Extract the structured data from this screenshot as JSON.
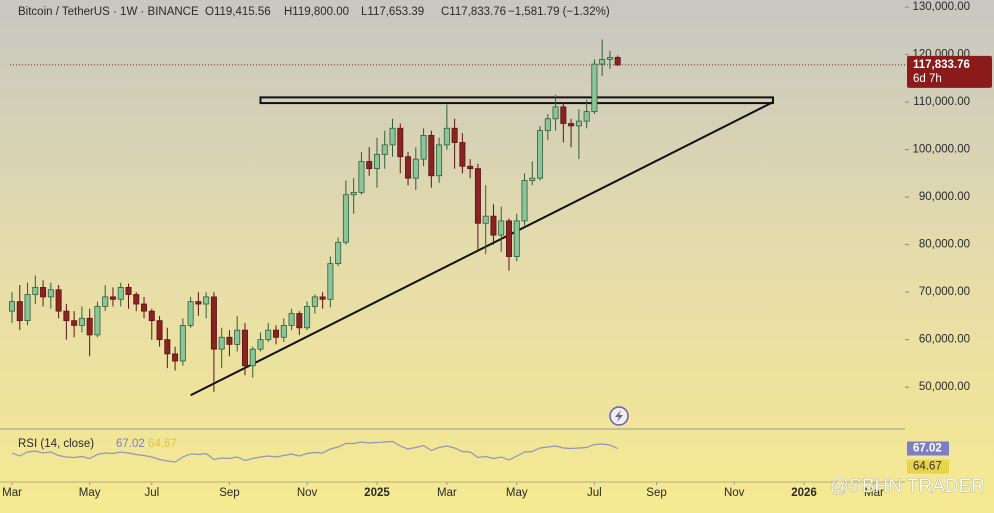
{
  "chart_data": {
    "type": "candlestick",
    "symbol": "Bitcoin / TetherUS · 1W · BINANCE",
    "ohlc_labels": [
      "O119,415.56",
      "H119,800.00",
      "L117,653.39",
      "C117,833.76"
    ],
    "change": "−1,581.79 (−1.32%)",
    "last_price_label": "117,833.76",
    "countdown": "6d 7h",
    "xlim": [
      -0.26,
      115.0
    ],
    "xticks": [
      {
        "value": 0,
        "label": "Mar"
      },
      {
        "value": 10,
        "label": "May"
      },
      {
        "value": 18,
        "label": "Jul"
      },
      {
        "value": 28,
        "label": "Sep"
      },
      {
        "value": 38,
        "label": "Nov"
      },
      {
        "value": 47,
        "label": "2025"
      },
      {
        "value": 56,
        "label": "Mar"
      },
      {
        "value": 65,
        "label": "May"
      },
      {
        "value": 75,
        "label": "Jul"
      },
      {
        "value": 83,
        "label": "Sep"
      },
      {
        "value": 93,
        "label": "Nov"
      },
      {
        "value": 102,
        "label": "2026"
      },
      {
        "value": 111,
        "label": "Mar"
      }
    ],
    "ylim": [
      41400,
      131500
    ],
    "yticks": [
      {
        "value": 50000,
        "label": "50,000.00"
      },
      {
        "value": 60000,
        "label": "60,000.00"
      },
      {
        "value": 70000,
        "label": "70,000.00"
      },
      {
        "value": 80000,
        "label": "80,000.00"
      },
      {
        "value": 90000,
        "label": "90,000.00"
      },
      {
        "value": 100000,
        "label": "100,000.00"
      },
      {
        "value": 110000,
        "label": "110,000.00"
      },
      {
        "value": 120000,
        "label": "120,000.00"
      },
      {
        "value": 130000,
        "label": "130,000.00"
      }
    ],
    "up_color": "#8cc49a",
    "down_color": "#8b2323",
    "open": [
      66000,
      68000,
      64000,
      69500,
      71000,
      69000,
      70500,
      66000,
      64000,
      63000,
      64500,
      61000,
      67000,
      69000,
      68500,
      71000,
      69500,
      67500,
      66000,
      64000,
      60000,
      57000,
      55500,
      63000,
      68000,
      67500,
      69000,
      58000,
      60500,
      59000,
      62000,
      54500,
      58000,
      60000,
      62000,
      60500,
      63000,
      65500,
      62500,
      67000,
      69000,
      68500,
      76000,
      80500,
      90500,
      91000,
      97500,
      96000,
      99000,
      101000,
      104500,
      98500,
      94000,
      98000,
      103000,
      94500,
      101000,
      104500,
      101500,
      96500,
      96000,
      84500,
      86000,
      82000,
      85000,
      77500,
      85000,
      93500,
      94000,
      104000,
      106500,
      109000,
      105500,
      105000,
      106000,
      108000,
      118000,
      119000,
      119415.56
    ],
    "high": [
      70000,
      71500,
      72000,
      73500,
      72500,
      72000,
      71500,
      67500,
      66000,
      67000,
      66500,
      68000,
      71500,
      71000,
      72000,
      71800,
      70000,
      69000,
      66500,
      65000,
      62500,
      58500,
      64500,
      69000,
      70000,
      70000,
      70000,
      62500,
      62000,
      65000,
      63500,
      58500,
      61500,
      63500,
      63000,
      64500,
      66500,
      66000,
      68000,
      69500,
      70000,
      77500,
      81500,
      93500,
      94000,
      99500,
      100500,
      102500,
      104000,
      106500,
      105500,
      99500,
      100500,
      104500,
      104000,
      102500,
      109500,
      106500,
      103500,
      98000,
      97000,
      92500,
      88500,
      88000,
      85500,
      86500,
      95000,
      97500,
      105000,
      107500,
      111500,
      110000,
      106500,
      108500,
      110500,
      119000,
      123200,
      120800,
      119800
    ],
    "low": [
      63500,
      62000,
      63000,
      67500,
      67000,
      66500,
      64500,
      60000,
      60500,
      61500,
      56500,
      60500,
      66000,
      67000,
      67000,
      66500,
      66000,
      64500,
      60000,
      58500,
      54000,
      53500,
      54500,
      62500,
      65000,
      64500,
      49000,
      54000,
      56500,
      57500,
      52500,
      52000,
      57500,
      59500,
      59000,
      59500,
      62000,
      61000,
      62000,
      65500,
      66500,
      66800,
      75500,
      80000,
      86500,
      90500,
      94500,
      92000,
      96000,
      98500,
      95000,
      92500,
      91500,
      96500,
      92000,
      93000,
      100000,
      96000,
      95000,
      94000,
      79000,
      78000,
      80000,
      78500,
      74500,
      76500,
      84000,
      92500,
      93500,
      102000,
      104000,
      101500,
      100500,
      98000,
      104500,
      107500,
      115500,
      117000,
      117653.39
    ],
    "close": [
      68000,
      64000,
      69500,
      71000,
      69000,
      70500,
      66000,
      64000,
      63000,
      64500,
      61000,
      67000,
      69000,
      68500,
      71000,
      69500,
      67500,
      66000,
      64000,
      60000,
      57000,
      55500,
      63000,
      68000,
      67500,
      69000,
      58000,
      60500,
      59000,
      62000,
      54500,
      58000,
      60000,
      62000,
      60500,
      63000,
      65500,
      62500,
      67000,
      69000,
      68500,
      76000,
      80500,
      90500,
      91000,
      97500,
      96000,
      99000,
      101000,
      104500,
      98500,
      94000,
      98000,
      103000,
      94500,
      101000,
      104500,
      101500,
      96500,
      96000,
      84500,
      86000,
      82000,
      85000,
      77500,
      85000,
      93500,
      94000,
      104000,
      106500,
      109000,
      105500,
      105000,
      106000,
      108000,
      118000,
      119000,
      119415.56,
      117833.76
    ],
    "annotations": {
      "zone": {
        "x": [
          32,
          98
        ],
        "y": [
          109800,
          111000
        ]
      },
      "trendline": {
        "x": [
          23,
          98
        ],
        "y": [
          48300,
          110000
        ]
      }
    },
    "rsi": {
      "label": "RSI (14, close)",
      "ylim": [
        0,
        100
      ],
      "color": "#7d7fc4",
      "values": [
        58,
        52,
        60,
        62,
        58,
        60,
        53,
        50,
        49,
        51,
        47,
        55,
        58,
        57,
        60,
        58,
        55,
        53,
        50,
        45,
        42,
        40,
        50,
        56,
        55,
        57,
        45,
        48,
        47,
        50,
        43,
        47,
        50,
        52,
        50,
        53,
        56,
        52,
        57,
        59,
        58,
        66,
        70,
        77,
        77,
        80,
        78,
        79,
        80,
        81,
        72,
        66,
        69,
        73,
        63,
        69,
        72,
        68,
        61,
        60,
        49,
        51,
        47,
        50,
        44,
        52,
        60,
        61,
        68,
        70,
        72,
        68,
        67,
        68,
        69,
        75,
        76,
        74,
        67.02
      ],
      "ma": 64.67,
      "ma_color": "#e8d34a"
    },
    "watermark": "@SBHN TRADER"
  }
}
